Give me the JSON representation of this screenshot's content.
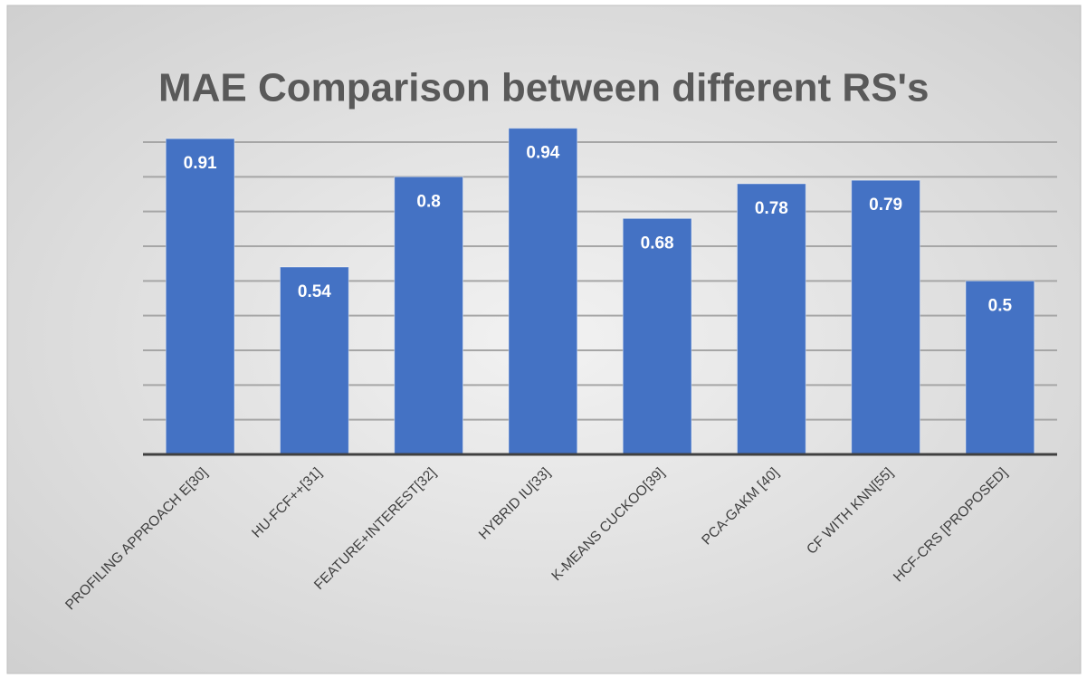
{
  "chart_data": {
    "type": "bar",
    "title": "MAE Comparison between different RS's",
    "categories": [
      "PROFILING APPROACH E[30]",
      "HU-FCF++[31]",
      "FEATURE+INTEREST[32]",
      "HYBRID IU[33]",
      "K-MEANS CUCKOO[39]",
      "PCA-GAKM [40]",
      "CF WITH KNN[55]",
      "HCF-CRS [PROPOSED]"
    ],
    "values": [
      0.91,
      0.54,
      0.8,
      0.94,
      0.68,
      0.78,
      0.79,
      0.5
    ],
    "color": "#4472c4",
    "ylim": [
      0,
      0.9
    ],
    "yticks": [
      0,
      0.1,
      0.2,
      0.3,
      0.4,
      0.5,
      0.6,
      0.7,
      0.8,
      0.9
    ],
    "grid": true
  }
}
